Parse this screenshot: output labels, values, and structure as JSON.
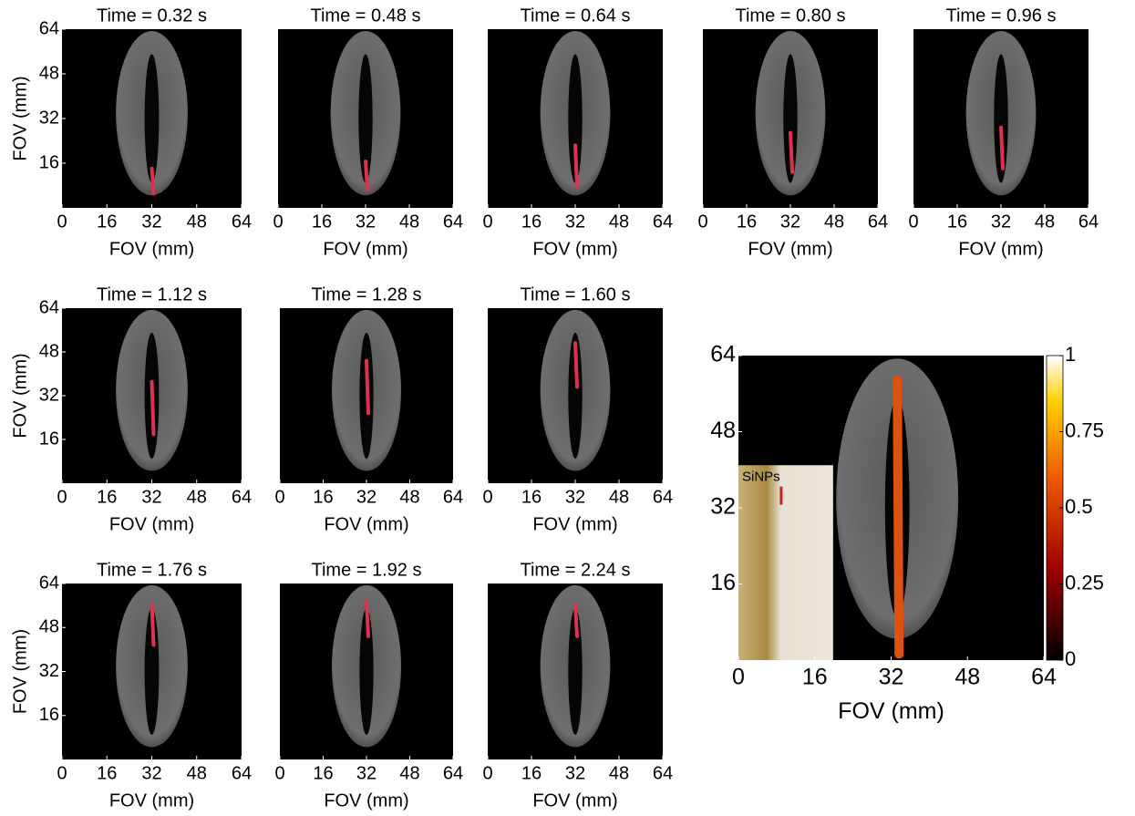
{
  "chart_data": [
    {
      "type": "image",
      "title": "Time = 0.32 s",
      "xlabel": "FOV (mm)",
      "ylabel": "FOV (mm)",
      "xlim": [
        0,
        64
      ],
      "ylim": [
        0,
        64
      ],
      "xticks": [
        0,
        16,
        32,
        48,
        64
      ],
      "yticks": [
        16,
        32,
        48,
        64
      ]
    },
    {
      "type": "image",
      "title": "Time = 0.48 s",
      "xlabel": "FOV (mm)",
      "xlim": [
        0,
        64
      ],
      "ylim": [
        0,
        64
      ],
      "xticks": [
        0,
        16,
        32,
        48,
        64
      ]
    },
    {
      "type": "image",
      "title": "Time = 0.64 s",
      "xlabel": "FOV (mm)",
      "xlim": [
        0,
        64
      ],
      "ylim": [
        0,
        64
      ],
      "xticks": [
        0,
        16,
        32,
        48,
        64
      ]
    },
    {
      "type": "image",
      "title": "Time = 0.80 s",
      "xlabel": "FOV (mm)",
      "xlim": [
        0,
        64
      ],
      "ylim": [
        0,
        64
      ],
      "xticks": [
        0,
        16,
        32,
        48,
        64
      ]
    },
    {
      "type": "image",
      "title": "Time = 0.96 s",
      "xlabel": "FOV (mm)",
      "xlim": [
        0,
        64
      ],
      "ylim": [
        0,
        64
      ],
      "xticks": [
        0,
        16,
        32,
        48,
        64
      ]
    },
    {
      "type": "image",
      "title": "Time = 1.12 s",
      "xlabel": "FOV (mm)",
      "ylabel": "FOV (mm)",
      "xlim": [
        0,
        64
      ],
      "ylim": [
        0,
        64
      ],
      "xticks": [
        0,
        16,
        32,
        48,
        64
      ],
      "yticks": [
        16,
        32,
        48,
        64
      ]
    },
    {
      "type": "image",
      "title": "Time = 1.28 s",
      "xlabel": "FOV (mm)",
      "xlim": [
        0,
        64
      ],
      "ylim": [
        0,
        64
      ],
      "xticks": [
        0,
        16,
        32,
        48,
        64
      ]
    },
    {
      "type": "image",
      "title": "Time = 1.60 s",
      "xlabel": "FOV (mm)",
      "xlim": [
        0,
        64
      ],
      "ylim": [
        0,
        64
      ],
      "xticks": [
        0,
        16,
        32,
        48,
        64
      ]
    },
    {
      "type": "image",
      "title": "Time = 1.76 s",
      "xlabel": "FOV (mm)",
      "ylabel": "FOV (mm)",
      "xlim": [
        0,
        64
      ],
      "ylim": [
        0,
        64
      ],
      "xticks": [
        0,
        16,
        32,
        48,
        64
      ],
      "yticks": [
        16,
        32,
        48,
        64
      ]
    },
    {
      "type": "image",
      "title": "Time = 1.92 s",
      "xlabel": "FOV (mm)",
      "xlim": [
        0,
        64
      ],
      "ylim": [
        0,
        64
      ],
      "xticks": [
        0,
        16,
        32,
        48,
        64
      ]
    },
    {
      "type": "image",
      "title": "Time = 2.24 s",
      "xlabel": "FOV (mm)",
      "xlim": [
        0,
        64
      ],
      "ylim": [
        0,
        64
      ],
      "xticks": [
        0,
        16,
        32,
        48,
        64
      ]
    },
    {
      "type": "image",
      "xlabel": "FOV (mm)",
      "xlim": [
        0,
        64
      ],
      "ylim": [
        0,
        64
      ],
      "xticks": [
        0,
        16,
        32,
        48,
        64
      ],
      "yticks": [
        16,
        32,
        48,
        64
      ],
      "inset_label": "SiNPs",
      "colorbar": {
        "lim": [
          0,
          1
        ],
        "ticks": [
          0,
          0.25,
          0.5,
          0.75,
          1
        ]
      }
    }
  ]
}
